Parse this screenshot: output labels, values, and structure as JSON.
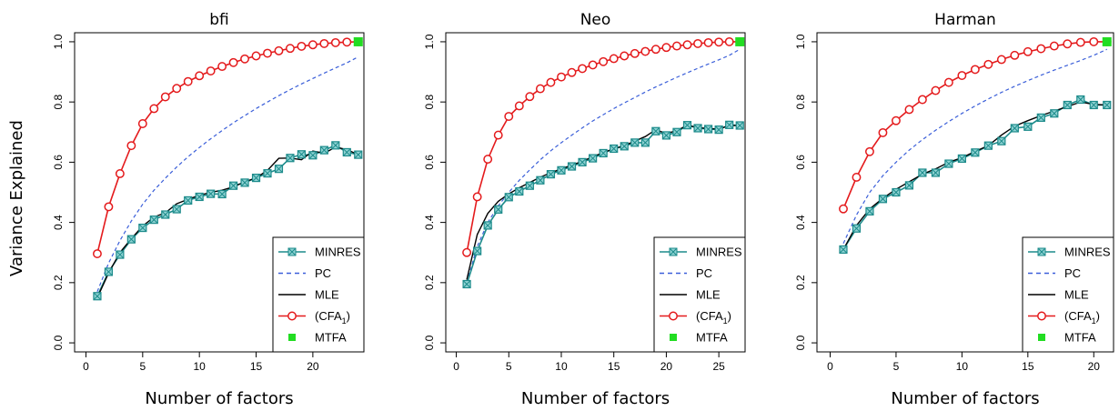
{
  "figure": {
    "ylabel": "Variance Explained"
  },
  "chart_data": [
    {
      "type": "line",
      "title": "bfi",
      "xlabel": "Number of factors",
      "xlim": [
        -1,
        24.5
      ],
      "ylim": [
        -0.03,
        1.03
      ],
      "xticks": [
        0,
        5,
        10,
        15,
        20
      ],
      "yticks": [
        0.0,
        0.2,
        0.4,
        0.6,
        0.8,
        1.0
      ],
      "yticklabels": [
        "0.0",
        "0.2",
        "0.4",
        "0.6",
        "0.8",
        "1.0"
      ],
      "grid": false,
      "legend_position": "bottom-right",
      "series": [
        {
          "name": "MINRES",
          "color": "#1d8b8b",
          "style": "solid-marker",
          "x": [
            1,
            2,
            3,
            4,
            5,
            6,
            7,
            8,
            9,
            10,
            11,
            12,
            13,
            14,
            15,
            16,
            17,
            18,
            19,
            20,
            21,
            22,
            23,
            24
          ],
          "y": [
            0.155,
            0.236,
            0.293,
            0.344,
            0.382,
            0.409,
            0.426,
            0.444,
            0.473,
            0.485,
            0.495,
            0.494,
            0.522,
            0.532,
            0.548,
            0.563,
            0.578,
            0.614,
            0.626,
            0.623,
            0.64,
            0.656,
            0.633,
            0.625
          ]
        },
        {
          "name": "PC",
          "color": "#3b5fd9",
          "style": "dashed",
          "x": [
            1,
            2,
            3,
            4,
            5,
            6,
            7,
            8,
            9,
            10,
            11,
            12,
            13,
            14,
            15,
            16,
            17,
            18,
            19,
            20,
            21,
            22,
            23,
            24
          ],
          "y": [
            0.17,
            0.265,
            0.34,
            0.405,
            0.46,
            0.507,
            0.547,
            0.584,
            0.618,
            0.649,
            0.678,
            0.705,
            0.731,
            0.755,
            0.778,
            0.8,
            0.821,
            0.841,
            0.86,
            0.878,
            0.896,
            0.913,
            0.93,
            0.95
          ]
        },
        {
          "name": "MLE",
          "color": "#000000",
          "style": "solid",
          "x": [
            1,
            2,
            3,
            4,
            5,
            6,
            7,
            8,
            9,
            10,
            11,
            12,
            13,
            14,
            15,
            16,
            17,
            18,
            19,
            20,
            21,
            22,
            23,
            24
          ],
          "y": [
            0.15,
            0.232,
            0.3,
            0.346,
            0.388,
            0.418,
            0.432,
            0.462,
            0.477,
            0.49,
            0.5,
            0.507,
            0.518,
            0.535,
            0.548,
            0.573,
            0.613,
            0.614,
            0.608,
            0.637,
            0.63,
            0.65,
            0.642,
            0.625
          ]
        },
        {
          "name": "(CFA1)",
          "color": "#e41a1c",
          "style": "solid-circle",
          "x": [
            1,
            2,
            3,
            4,
            5,
            6,
            7,
            8,
            9,
            10,
            11,
            12,
            13,
            14,
            15,
            16,
            17,
            18,
            19,
            20,
            21,
            22,
            23,
            24
          ],
          "y": [
            0.296,
            0.452,
            0.562,
            0.655,
            0.728,
            0.778,
            0.817,
            0.845,
            0.868,
            0.887,
            0.903,
            0.918,
            0.931,
            0.943,
            0.953,
            0.962,
            0.97,
            0.978,
            0.985,
            0.99,
            0.994,
            0.997,
            0.999,
            1.0
          ]
        },
        {
          "name": "MTFA",
          "color": "#22dd22",
          "style": "point",
          "x": [
            24
          ],
          "y": [
            1.0
          ]
        }
      ]
    },
    {
      "type": "line",
      "title": "Neo",
      "xlabel": "Number of factors",
      "xlim": [
        -1,
        27.5
      ],
      "ylim": [
        -0.03,
        1.03
      ],
      "xticks": [
        0,
        5,
        10,
        15,
        20,
        25
      ],
      "yticks": [
        0.0,
        0.2,
        0.4,
        0.6,
        0.8,
        1.0
      ],
      "yticklabels": [
        "0.0",
        "0.2",
        "0.4",
        "0.6",
        "0.8",
        "1.0"
      ],
      "grid": false,
      "legend_position": "bottom-right",
      "series": [
        {
          "name": "MINRES",
          "color": "#1d8b8b",
          "style": "solid-marker",
          "x": [
            1,
            2,
            3,
            4,
            5,
            6,
            7,
            8,
            9,
            10,
            11,
            12,
            13,
            14,
            15,
            16,
            17,
            18,
            19,
            20,
            21,
            22,
            23,
            24,
            25,
            26,
            27
          ],
          "y": [
            0.195,
            0.305,
            0.39,
            0.443,
            0.484,
            0.503,
            0.522,
            0.54,
            0.56,
            0.573,
            0.586,
            0.6,
            0.613,
            0.63,
            0.645,
            0.653,
            0.665,
            0.665,
            0.703,
            0.689,
            0.7,
            0.723,
            0.713,
            0.71,
            0.708,
            0.724,
            0.722
          ]
        },
        {
          "name": "PC",
          "color": "#3b5fd9",
          "style": "dashed",
          "x": [
            1,
            2,
            3,
            4,
            5,
            6,
            7,
            8,
            9,
            10,
            11,
            12,
            13,
            14,
            15,
            16,
            17,
            18,
            19,
            20,
            21,
            22,
            23,
            24,
            25,
            26,
            27
          ],
          "y": [
            0.2,
            0.32,
            0.4,
            0.455,
            0.5,
            0.54,
            0.575,
            0.608,
            0.638,
            0.665,
            0.69,
            0.714,
            0.737,
            0.758,
            0.778,
            0.797,
            0.815,
            0.833,
            0.85,
            0.866,
            0.882,
            0.897,
            0.912,
            0.926,
            0.94,
            0.955,
            0.975
          ]
        },
        {
          "name": "MLE",
          "color": "#000000",
          "style": "solid",
          "x": [
            1,
            2,
            3,
            4,
            5,
            6,
            7,
            8,
            9,
            10,
            11,
            12,
            13,
            14,
            15,
            16,
            17,
            18,
            19,
            20,
            21,
            22,
            23,
            24,
            25,
            26,
            27
          ],
          "y": [
            0.21,
            0.36,
            0.43,
            0.47,
            0.495,
            0.515,
            0.533,
            0.55,
            0.565,
            0.578,
            0.59,
            0.603,
            0.618,
            0.632,
            0.645,
            0.655,
            0.67,
            0.685,
            0.708,
            0.695,
            0.705,
            0.723,
            0.715,
            0.712,
            0.71,
            0.722,
            0.722
          ]
        },
        {
          "name": "(CFA1)",
          "color": "#e41a1c",
          "style": "solid-circle",
          "x": [
            1,
            2,
            3,
            4,
            5,
            6,
            7,
            8,
            9,
            10,
            11,
            12,
            13,
            14,
            15,
            16,
            17,
            18,
            19,
            20,
            21,
            22,
            23,
            24,
            25,
            26,
            27
          ],
          "y": [
            0.3,
            0.485,
            0.61,
            0.69,
            0.752,
            0.787,
            0.818,
            0.844,
            0.865,
            0.883,
            0.898,
            0.911,
            0.923,
            0.934,
            0.944,
            0.953,
            0.961,
            0.968,
            0.975,
            0.981,
            0.986,
            0.99,
            0.994,
            0.997,
            0.999,
            1.0,
            1.0
          ]
        },
        {
          "name": "MTFA",
          "color": "#22dd22",
          "style": "point",
          "x": [
            27
          ],
          "y": [
            1.0
          ]
        }
      ]
    },
    {
      "type": "line",
      "title": "Harman",
      "xlabel": "Number of factors",
      "xlim": [
        -1,
        21.5
      ],
      "ylim": [
        -0.03,
        1.03
      ],
      "xticks": [
        0,
        5,
        10,
        15,
        20
      ],
      "yticks": [
        0.0,
        0.2,
        0.4,
        0.6,
        0.8,
        1.0
      ],
      "yticklabels": [
        "0.0",
        "0.2",
        "0.4",
        "0.6",
        "0.8",
        "1.0"
      ],
      "grid": false,
      "legend_position": "bottom-right",
      "series": [
        {
          "name": "MINRES",
          "color": "#1d8b8b",
          "style": "solid-marker",
          "x": [
            1,
            2,
            3,
            4,
            5,
            6,
            7,
            8,
            9,
            10,
            11,
            12,
            13,
            14,
            15,
            16,
            17,
            18,
            19,
            20,
            21
          ],
          "y": [
            0.31,
            0.38,
            0.437,
            0.478,
            0.5,
            0.523,
            0.565,
            0.565,
            0.595,
            0.612,
            0.632,
            0.655,
            0.67,
            0.713,
            0.718,
            0.748,
            0.762,
            0.79,
            0.808,
            0.79,
            0.79
          ]
        },
        {
          "name": "PC",
          "color": "#3b5fd9",
          "style": "dashed",
          "x": [
            1,
            2,
            3,
            4,
            5,
            6,
            7,
            8,
            9,
            10,
            11,
            12,
            13,
            14,
            15,
            16,
            17,
            18,
            19,
            20,
            21
          ],
          "y": [
            0.33,
            0.425,
            0.5,
            0.555,
            0.6,
            0.64,
            0.675,
            0.706,
            0.735,
            0.762,
            0.787,
            0.81,
            0.832,
            0.852,
            0.871,
            0.889,
            0.906,
            0.922,
            0.938,
            0.955,
            0.975
          ]
        },
        {
          "name": "MLE",
          "color": "#000000",
          "style": "solid",
          "x": [
            1,
            2,
            3,
            4,
            5,
            6,
            7,
            8,
            9,
            10,
            11,
            12,
            13,
            14,
            15,
            16,
            17,
            18,
            19,
            20,
            21
          ],
          "y": [
            0.31,
            0.39,
            0.445,
            0.48,
            0.51,
            0.535,
            0.56,
            0.578,
            0.6,
            0.615,
            0.636,
            0.655,
            0.69,
            0.72,
            0.738,
            0.755,
            0.77,
            0.785,
            0.8,
            0.792,
            0.79
          ]
        },
        {
          "name": "(CFA1)",
          "color": "#e41a1c",
          "style": "solid-circle",
          "x": [
            1,
            2,
            3,
            4,
            5,
            6,
            7,
            8,
            9,
            10,
            11,
            12,
            13,
            14,
            15,
            16,
            17,
            18,
            19,
            20,
            21
          ],
          "y": [
            0.445,
            0.55,
            0.635,
            0.698,
            0.738,
            0.775,
            0.808,
            0.838,
            0.865,
            0.888,
            0.908,
            0.925,
            0.941,
            0.955,
            0.967,
            0.977,
            0.986,
            0.993,
            0.998,
            1.0,
            1.0
          ]
        },
        {
          "name": "MTFA",
          "color": "#22dd22",
          "style": "point",
          "x": [
            21
          ],
          "y": [
            1.0
          ]
        }
      ]
    }
  ]
}
